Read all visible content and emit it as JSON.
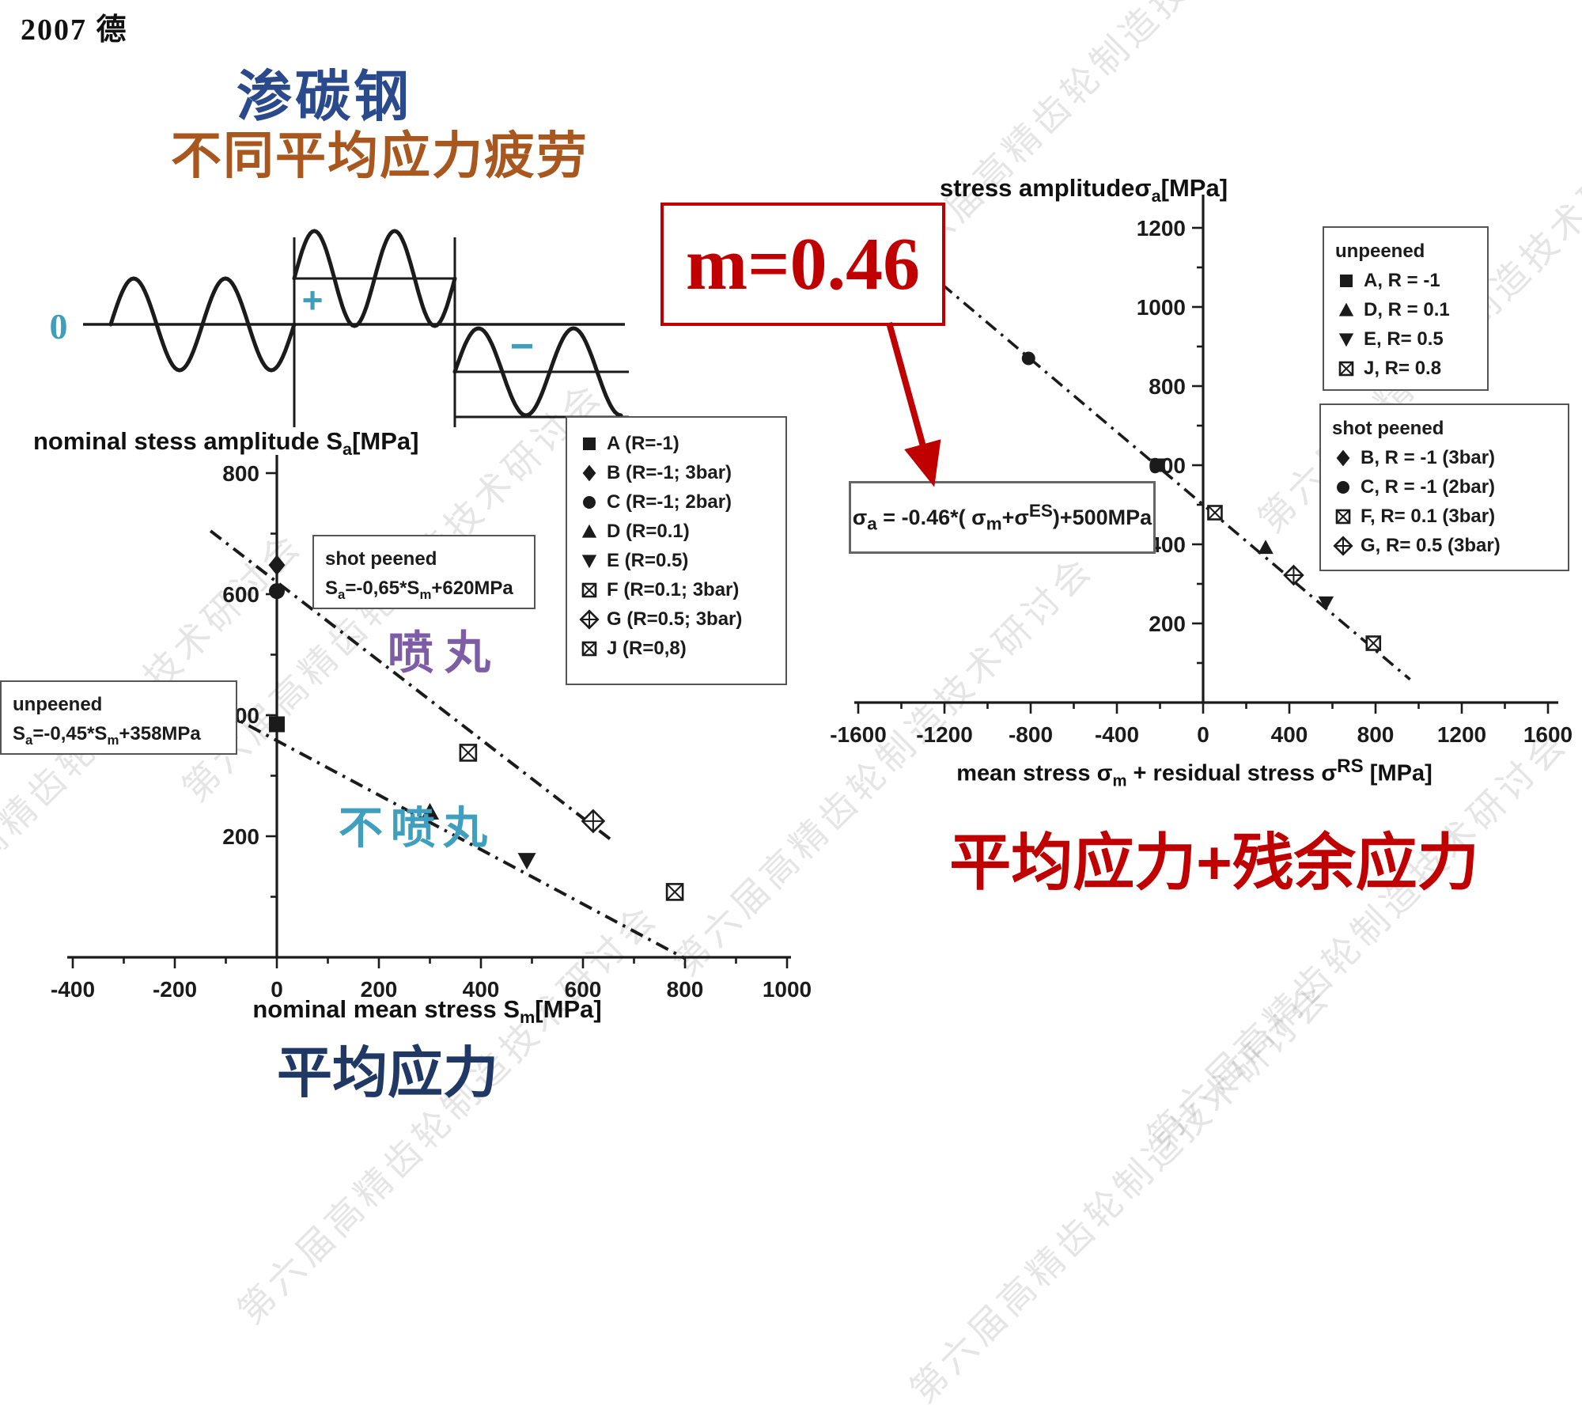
{
  "slide": {
    "header": "2007  德",
    "title_line1": "渗碳钢",
    "title_line2": "不同平均应力疲劳",
    "caption_left": "平均应力",
    "caption_right": "平均应力+残余应力",
    "m_annotation": "m=0.46",
    "watermark_text": "第六届高精齿轮制造技术研讨会"
  },
  "waveform": {
    "zero_label": "0",
    "plus_label": "+",
    "minus_label": "−"
  },
  "colors": {
    "ink": "#1b1b1b",
    "title_blue": "#2B4A8B",
    "title_brown": "#A8571E",
    "caption_navy": "#1F3864",
    "teal_symbol": "#3E9EBC",
    "purple_label": "#7D5EA6",
    "teal_label": "#3E9FBF",
    "accent_red": "#C00000"
  },
  "chart_data": [
    {
      "id": "left",
      "type": "scatter",
      "title": "nominal stess amplitude S_{a}[MPa]",
      "xlabel": "nominal mean stress S_{m}[MPa]",
      "xlim": [
        -400,
        1000
      ],
      "ylim": [
        0,
        830
      ],
      "x_major": 200,
      "x_minor": 100,
      "y_major": 200,
      "y_minor": 100,
      "grid": false,
      "legend_position": "upper right",
      "series": [
        {
          "name": "A (R=-1)",
          "marker": "square",
          "points": [
            [
              0,
              385
            ]
          ]
        },
        {
          "name": "B (R=-1; 3bar)",
          "marker": "diamond",
          "points": [
            [
              0,
              648
            ]
          ]
        },
        {
          "name": "C (R=-1; 2bar)",
          "marker": "circle",
          "points": [
            [
              0,
              605
            ]
          ]
        },
        {
          "name": "D (R=0.1)",
          "marker": "triangle-up",
          "points": [
            [
              300,
              240
            ]
          ]
        },
        {
          "name": "E (R=0.5)",
          "marker": "triangle-down",
          "points": [
            [
              490,
              160
            ]
          ]
        },
        {
          "name": "F (R=0.1; 3bar)",
          "marker": "square-x",
          "points": [
            [
              375,
              338
            ]
          ]
        },
        {
          "name": "G (R=0.5; 3bar)",
          "marker": "diamond-plus",
          "points": [
            [
              620,
              225
            ]
          ]
        },
        {
          "name": "J (R=0,8)",
          "marker": "square-x",
          "points": [
            [
              780,
              108
            ]
          ]
        }
      ],
      "fit_lines": [
        {
          "label": "shot peened",
          "equation": "Sa = -0,65*Sm + 620 MPa",
          "slope": -0.65,
          "intercept": 620,
          "x_range": [
            -130,
            655
          ]
        },
        {
          "label": "unpeened",
          "equation": "Sa = -0,45*Sm + 358 MPa",
          "slope": -0.45,
          "intercept": 358,
          "x_range": [
            -155,
            800
          ]
        }
      ],
      "annotations": [
        {
          "title": "shot peened",
          "formula": "S_{a}=-0,65*S_{m}+620MPa"
        },
        {
          "title": "unpeened",
          "formula": "S_{a}=-0,45*S_{m}+358MPa"
        },
        {
          "text": "喷丸"
        },
        {
          "text": "不喷丸"
        }
      ]
    },
    {
      "id": "right",
      "type": "scatter",
      "title": "stress amplitudeσ_{a}[MPa]",
      "xlabel": "mean stress    σ_{m} + residual stress    σ^{RS} [MPa]",
      "xlim": [
        -1600,
        1600
      ],
      "ylim": [
        0,
        1280
      ],
      "x_major": 400,
      "x_minor": 200,
      "y_major": 200,
      "y_minor": 100,
      "grid": false,
      "legend_groups": [
        {
          "title": "unpeened",
          "items": [
            {
              "marker": "square",
              "label": "A, R = -1"
            },
            {
              "marker": "triangle-up",
              "label": "D, R = 0.1"
            },
            {
              "marker": "triangle-down",
              "label": "E, R= 0.5"
            },
            {
              "marker": "square-x",
              "label": "J, R= 0.8"
            }
          ]
        },
        {
          "title": "shot peened",
          "items": [
            {
              "marker": "diamond",
              "label": "B, R = -1 (3bar)"
            },
            {
              "marker": "circle",
              "label": "C, R = -1 (2bar)"
            },
            {
              "marker": "square-x",
              "label": "F, R= 0.1 (3bar)"
            },
            {
              "marker": "diamond-plus",
              "label": "G, R= 0.5 (3bar)"
            }
          ]
        }
      ],
      "series": [
        {
          "name": "C, R = -1 (2bar)",
          "marker": "circle",
          "points": [
            [
              -810,
              870
            ]
          ]
        },
        {
          "name": "A, R = -1",
          "marker": "square",
          "points": [
            [
              -210,
              600
            ]
          ]
        },
        {
          "name": "F, R= 0.1 (3bar)",
          "marker": "square-x",
          "points": [
            [
              55,
              480
            ]
          ]
        },
        {
          "name": "D, R = 0.1",
          "marker": "triangle-up",
          "points": [
            [
              290,
              392
            ]
          ]
        },
        {
          "name": "G, R= 0.5 (3bar)",
          "marker": "diamond-plus",
          "points": [
            [
              420,
              322
            ]
          ]
        },
        {
          "name": "E, R= 0.5",
          "marker": "triangle-down",
          "points": [
            [
              570,
              252
            ]
          ]
        },
        {
          "name": "J, R= 0.8",
          "marker": "square-x",
          "points": [
            [
              790,
              150
            ]
          ]
        }
      ],
      "fit_lines": [
        {
          "label": "m=0.46 fit",
          "equation": "σa = -0.46*(σm+σES)+500MPa",
          "slope": -0.46,
          "intercept": 500,
          "x_range": [
            -1520,
            960
          ]
        }
      ],
      "annotations": [
        {
          "formula": "σ_{a} = -0.46*( σ_{m}+σ^{ES})+500MPa"
        }
      ]
    }
  ]
}
